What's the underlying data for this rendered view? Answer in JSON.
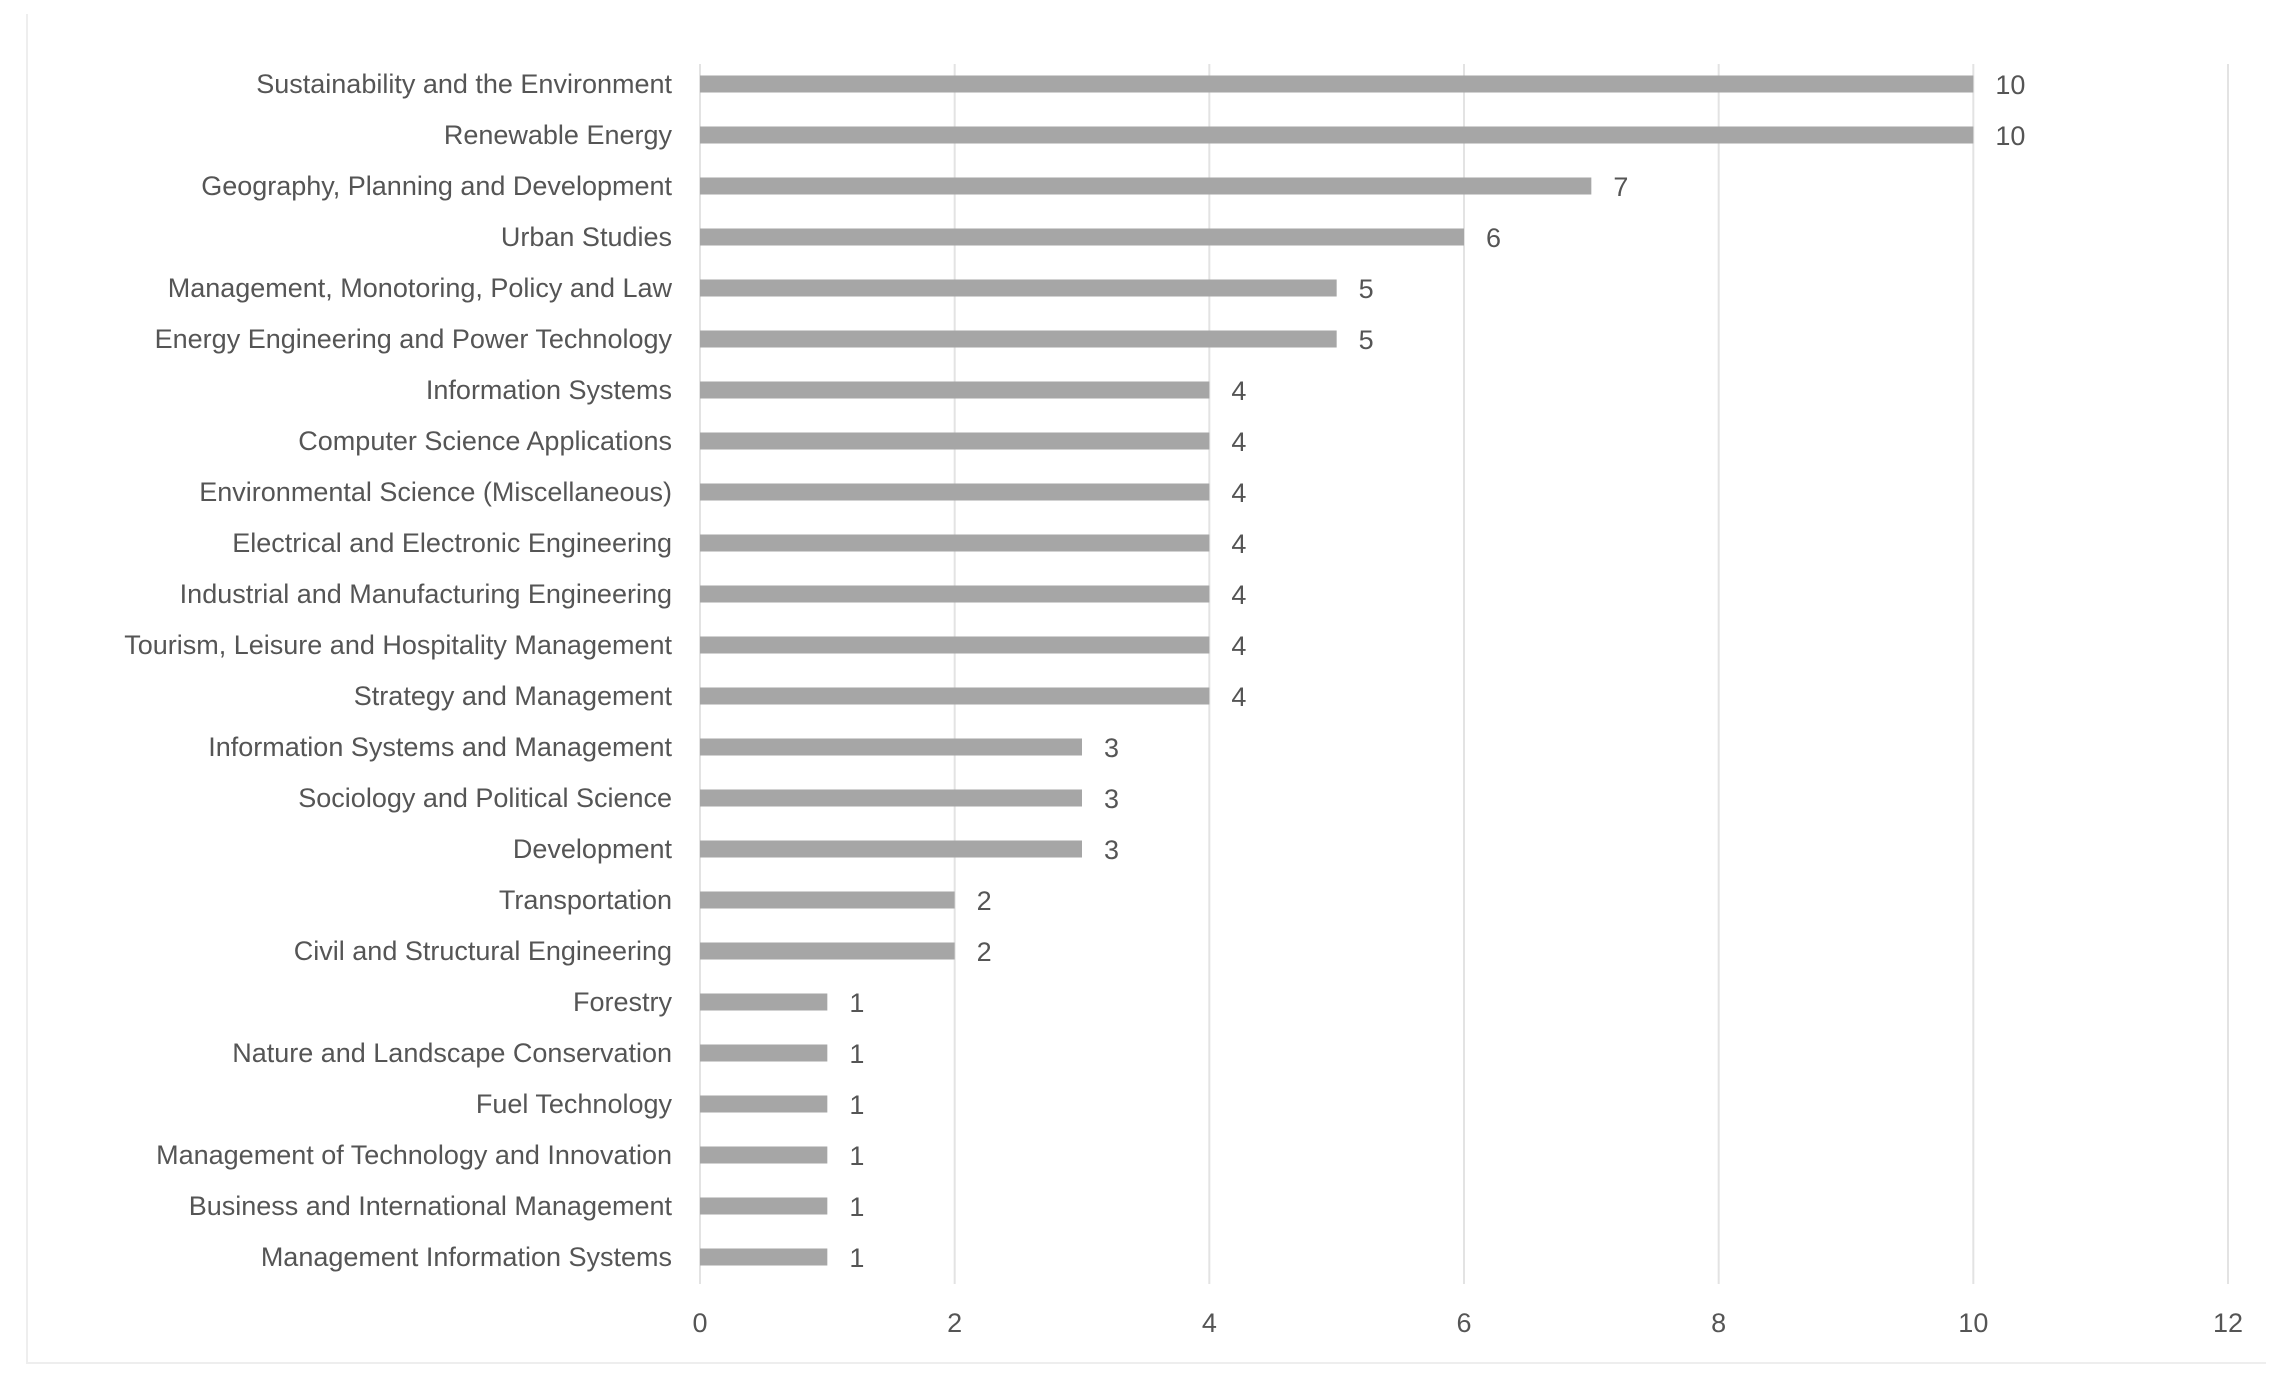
{
  "chart_data": {
    "type": "bar",
    "orientation": "horizontal",
    "title": "",
    "xlabel": "",
    "ylabel": "",
    "xlim": [
      0,
      12
    ],
    "x_ticks": [
      0,
      2,
      4,
      6,
      8,
      10,
      12
    ],
    "grid": "vertical",
    "legend": "none",
    "bar_color": "#a6a6a6",
    "categories": [
      "Sustainability and the Environment",
      "Renewable Energy",
      "Geography, Planning and Development",
      "Urban Studies",
      "Management, Monotoring, Policy and Law",
      "Energy Engineering and Power Technology",
      "Information Systems",
      "Computer Science Applications",
      "Environmental Science (Miscellaneous)",
      "Electrical and Electronic Engineering",
      "Industrial and Manufacturing Engineering",
      "Tourism, Leisure and Hospitality Management",
      "Strategy and Management",
      "Information Systems and Management",
      "Sociology and Political Science",
      "Development",
      "Transportation",
      "Civil and Structural Engineering",
      "Forestry",
      "Nature and Landscape Conservation",
      "Fuel Technology",
      "Management of Technology and Innovation",
      "Business and International Management",
      "Management Information Systems"
    ],
    "values": [
      10,
      10,
      7,
      6,
      5,
      5,
      4,
      4,
      4,
      4,
      4,
      4,
      4,
      3,
      3,
      3,
      2,
      2,
      1,
      1,
      1,
      1,
      1,
      1
    ]
  }
}
